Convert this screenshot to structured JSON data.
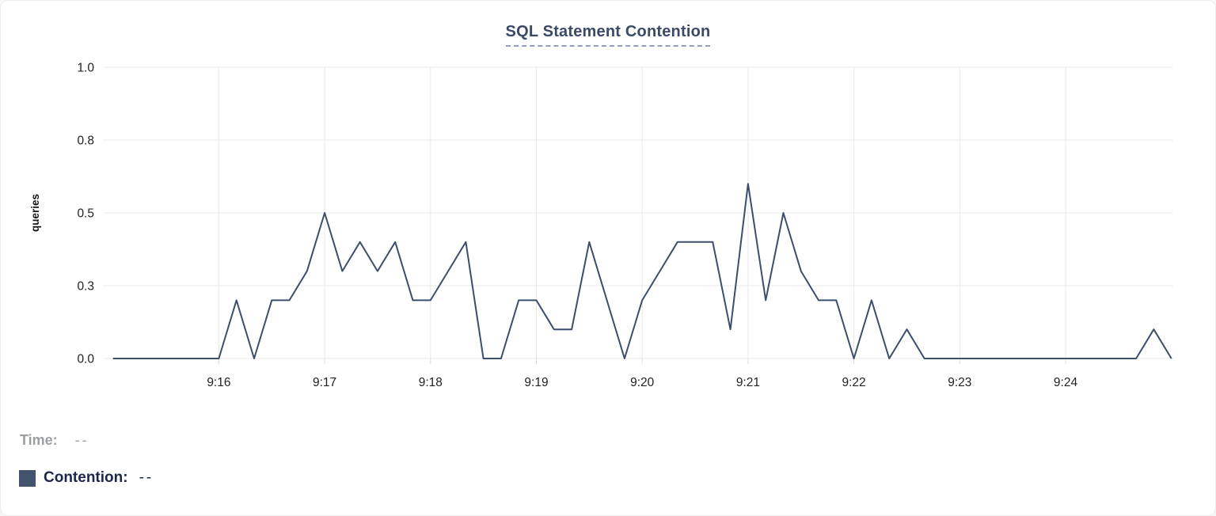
{
  "page": {
    "title_label": "SQL Statement Contention"
  },
  "chart_data": {
    "type": "line",
    "title": "SQL Statement Contention",
    "xlabel": "",
    "ylabel": "queries",
    "ylim": [
      0,
      1
    ],
    "grid": true,
    "legend_position": "bottom-left",
    "x_start": "9:15:00",
    "x_end": "9:25:00",
    "x_interval_seconds": 10,
    "x_tick_labels": [
      "9:16",
      "9:17",
      "9:18",
      "9:19",
      "9:20",
      "9:21",
      "9:22",
      "9:23",
      "9:24"
    ],
    "y_ticks": [
      {
        "value": 0,
        "label": "0.0"
      },
      {
        "value": 0.25,
        "label": "0.3"
      },
      {
        "value": 0.5,
        "label": "0.5"
      },
      {
        "value": 0.75,
        "label": "0.8"
      },
      {
        "value": 1,
        "label": "1.0"
      }
    ],
    "series": [
      {
        "name": "Contention",
        "color": "#3d4e6c",
        "values": [
          0,
          0,
          0,
          0,
          0,
          0,
          0,
          0.2,
          0,
          0.2,
          0.2,
          0.3,
          0.5,
          0.3,
          0.4,
          0.3,
          0.4,
          0.2,
          0.2,
          0.3,
          0.4,
          0,
          0,
          0.2,
          0.2,
          0.1,
          0.1,
          0.4,
          0.2,
          0,
          0.2,
          0.3,
          0.4,
          0.4,
          0.4,
          0.1,
          0.6,
          0.2,
          0.5,
          0.3,
          0.2,
          0.2,
          0,
          0.2,
          0,
          0.1,
          0,
          0,
          0,
          0,
          0,
          0,
          0,
          0,
          0,
          0,
          0,
          0,
          0,
          0.1,
          0
        ]
      }
    ]
  },
  "legend": {
    "time_label": "Time:",
    "time_value": "--",
    "contention_label": "Contention:",
    "contention_value": "--",
    "swatch_color": "#44536d"
  },
  "colors": {
    "title": "#3b4a68",
    "title_underline": "#949cc1",
    "line": "#3d4e6c",
    "grid": "#e9e9e9",
    "tick_mark": "#dcdcdc",
    "tick_label": "#222222",
    "muted_label": "#9b9fa4",
    "legend_text": "#1c2749"
  }
}
